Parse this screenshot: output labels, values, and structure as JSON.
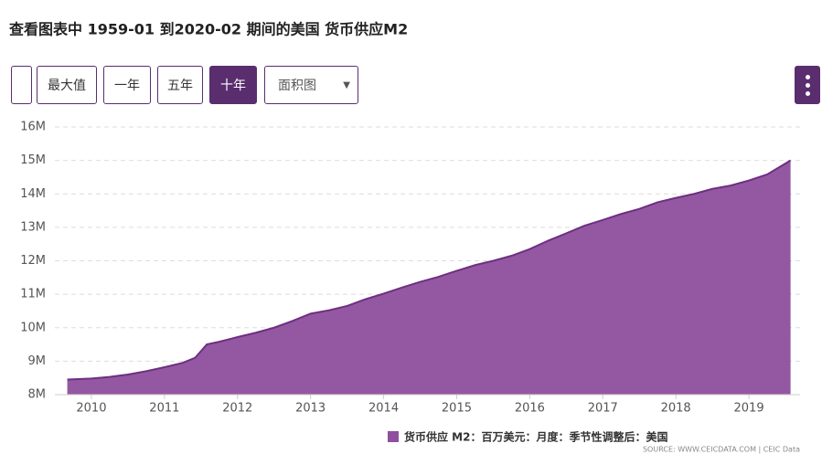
{
  "title": "查看图表中 1959-01 到2020-02 期间的美国 货币供应M2",
  "buttons": [
    "最大值",
    "一年",
    "五年",
    "十年"
  ],
  "chart_select": "面积图",
  "source": "SOURCE: WWW.CEICDATA.COM | CEIC Data",
  "chart_data": {
    "type": "area",
    "x": [
      2009.67,
      2010.0,
      2010.25,
      2010.5,
      2010.75,
      2011.0,
      2011.25,
      2011.42,
      2011.58,
      2011.75,
      2012.0,
      2012.25,
      2012.5,
      2012.75,
      2013.0,
      2013.25,
      2013.5,
      2013.75,
      2014.0,
      2014.25,
      2014.5,
      2014.75,
      2015.0,
      2015.25,
      2015.5,
      2015.75,
      2016.0,
      2016.25,
      2016.5,
      2016.75,
      2017.0,
      2017.25,
      2017.5,
      2017.75,
      2018.0,
      2018.25,
      2018.5,
      2018.75,
      2019.0,
      2019.25,
      2019.57
    ],
    "series": [
      {
        "name": "货币供应 M2：百万美元：月度：季节性调整后：美国",
        "color": "#8e4f9e",
        "values": [
          8450000,
          8480000,
          8530000,
          8600000,
          8700000,
          8820000,
          8950000,
          9100000,
          9500000,
          9580000,
          9720000,
          9850000,
          10000000,
          10200000,
          10420000,
          10520000,
          10650000,
          10850000,
          11020000,
          11200000,
          11370000,
          11520000,
          11700000,
          11870000,
          12000000,
          12150000,
          12350000,
          12600000,
          12820000,
          13050000,
          13220000,
          13400000,
          13550000,
          13750000,
          13880000,
          14000000,
          14150000,
          14250000,
          14400000,
          14580000,
          15000000
        ]
      }
    ],
    "xlim": [
      2009.5,
      2019.7
    ],
    "xticks": [
      2010,
      2011,
      2012,
      2013,
      2014,
      2015,
      2016,
      2017,
      2018,
      2019
    ],
    "ylim": [
      8000000,
      16000000
    ],
    "yticks": [
      {
        "value": 8000000,
        "label": "8M"
      },
      {
        "value": 9000000,
        "label": "9M"
      },
      {
        "value": 10000000,
        "label": "10M"
      },
      {
        "value": 11000000,
        "label": "11M"
      },
      {
        "value": 12000000,
        "label": "12M"
      },
      {
        "value": 13000000,
        "label": "13M"
      },
      {
        "value": 14000000,
        "label": "14M"
      },
      {
        "value": 15000000,
        "label": "15M"
      },
      {
        "value": 16000000,
        "label": "16M"
      }
    ],
    "grid": true
  }
}
